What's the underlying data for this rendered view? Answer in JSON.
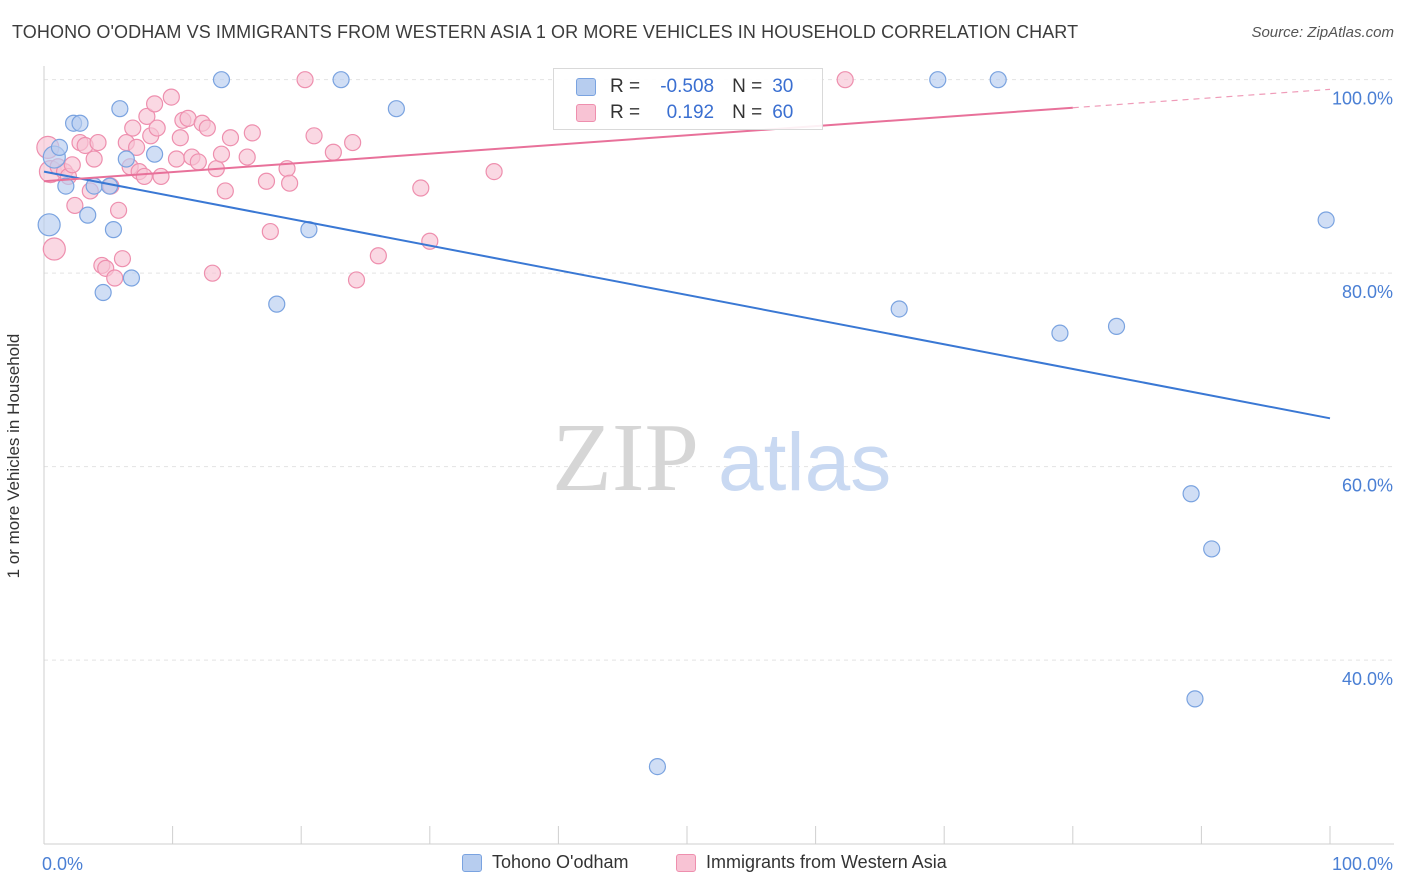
{
  "title": "TOHONO O'ODHAM VS IMMIGRANTS FROM WESTERN ASIA 1 OR MORE VEHICLES IN HOUSEHOLD CORRELATION CHART",
  "source": "Source: ZipAtlas.com",
  "watermark": {
    "zip": "ZIP",
    "atlas": "atlas"
  },
  "colors": {
    "blue_fill": "#b7cdef",
    "blue_stroke": "#7aa3e0",
    "blue_line": "#3a78d4",
    "pink_fill": "#f8c3d4",
    "pink_stroke": "#ee8fae",
    "pink_line": "#e8719a",
    "tick_text": "#4a7fd4",
    "grid": "#e3e3e3"
  },
  "legend": {
    "r_label": "R =",
    "n_label": "N =",
    "rows": [
      {
        "r": "-0.508",
        "n": "30"
      },
      {
        "r": "0.192",
        "n": "60"
      }
    ]
  },
  "chart_data": {
    "type": "scatter",
    "xlabel": "",
    "ylabel": "1 or more Vehicles in Household",
    "xlim": [
      0,
      100
    ],
    "ylim": [
      21,
      101
    ],
    "x_tick_labels": [
      "0.0%",
      "100.0%"
    ],
    "y_ticks": [
      40,
      60,
      80,
      100
    ],
    "y_tick_labels": [
      "40.0%",
      "60.0%",
      "80.0%",
      "100.0%"
    ],
    "grid": true,
    "legend_position": "top-center",
    "series": [
      {
        "name": "Tohono O'odham",
        "color": "#b7cdef",
        "trend": {
          "x": [
            0,
            100
          ],
          "y": [
            90.5,
            65.0
          ],
          "r": -0.508,
          "n": 30
        },
        "points": [
          {
            "x": 0.4,
            "y": 85.0
          },
          {
            "x": 0.8,
            "y": 92.0
          },
          {
            "x": 1.2,
            "y": 93.0
          },
          {
            "x": 1.7,
            "y": 89.0
          },
          {
            "x": 2.3,
            "y": 95.5
          },
          {
            "x": 2.8,
            "y": 95.5
          },
          {
            "x": 3.4,
            "y": 86.0
          },
          {
            "x": 3.9,
            "y": 89.0
          },
          {
            "x": 4.6,
            "y": 78.0
          },
          {
            "x": 5.1,
            "y": 89.0
          },
          {
            "x": 5.4,
            "y": 84.5
          },
          {
            "x": 5.9,
            "y": 97.0
          },
          {
            "x": 6.4,
            "y": 91.8
          },
          {
            "x": 6.8,
            "y": 79.5
          },
          {
            "x": 8.6,
            "y": 92.3
          },
          {
            "x": 13.8,
            "y": 100.0
          },
          {
            "x": 18.1,
            "y": 76.8
          },
          {
            "x": 20.6,
            "y": 84.5
          },
          {
            "x": 23.1,
            "y": 100.0
          },
          {
            "x": 27.4,
            "y": 97.0
          },
          {
            "x": 47.7,
            "y": 29.0
          },
          {
            "x": 66.5,
            "y": 76.3
          },
          {
            "x": 69.5,
            "y": 100.0
          },
          {
            "x": 74.2,
            "y": 100.0
          },
          {
            "x": 79.0,
            "y": 73.8
          },
          {
            "x": 83.4,
            "y": 74.5
          },
          {
            "x": 89.2,
            "y": 57.2
          },
          {
            "x": 89.5,
            "y": 36.0
          },
          {
            "x": 90.8,
            "y": 51.5
          },
          {
            "x": 99.7,
            "y": 85.5
          }
        ]
      },
      {
        "name": "Immigrants from Western Asia",
        "color": "#f8c3d4",
        "trend": {
          "x": [
            0,
            100
          ],
          "y": [
            89.5,
            99.0
          ],
          "r": 0.192,
          "n": 60
        },
        "trend_solid_to_x": 80,
        "points": [
          {
            "x": 0.3,
            "y": 93.0
          },
          {
            "x": 0.5,
            "y": 90.5
          },
          {
            "x": 0.8,
            "y": 82.5
          },
          {
            "x": 1.1,
            "y": 91.0
          },
          {
            "x": 1.6,
            "y": 90.5
          },
          {
            "x": 1.9,
            "y": 90.0
          },
          {
            "x": 2.2,
            "y": 91.2
          },
          {
            "x": 2.4,
            "y": 87.0
          },
          {
            "x": 2.8,
            "y": 93.5
          },
          {
            "x": 3.2,
            "y": 93.2
          },
          {
            "x": 3.6,
            "y": 88.5
          },
          {
            "x": 3.9,
            "y": 91.8
          },
          {
            "x": 4.2,
            "y": 93.5
          },
          {
            "x": 4.5,
            "y": 80.8
          },
          {
            "x": 4.8,
            "y": 80.5
          },
          {
            "x": 5.2,
            "y": 89.0
          },
          {
            "x": 5.5,
            "y": 79.5
          },
          {
            "x": 5.8,
            "y": 86.5
          },
          {
            "x": 6.1,
            "y": 81.5
          },
          {
            "x": 6.4,
            "y": 93.5
          },
          {
            "x": 6.7,
            "y": 91.0
          },
          {
            "x": 6.9,
            "y": 95.0
          },
          {
            "x": 7.2,
            "y": 93.0
          },
          {
            "x": 7.4,
            "y": 90.5
          },
          {
            "x": 7.8,
            "y": 90.0
          },
          {
            "x": 8.0,
            "y": 96.2
          },
          {
            "x": 8.3,
            "y": 94.2
          },
          {
            "x": 8.6,
            "y": 97.5
          },
          {
            "x": 8.8,
            "y": 95.0
          },
          {
            "x": 9.1,
            "y": 90.0
          },
          {
            "x": 9.9,
            "y": 98.2
          },
          {
            "x": 10.3,
            "y": 91.8
          },
          {
            "x": 10.6,
            "y": 94.0
          },
          {
            "x": 10.8,
            "y": 95.8
          },
          {
            "x": 11.2,
            "y": 96.0
          },
          {
            "x": 11.5,
            "y": 92.0
          },
          {
            "x": 12.0,
            "y": 91.5
          },
          {
            "x": 12.3,
            "y": 95.5
          },
          {
            "x": 12.7,
            "y": 95.0
          },
          {
            "x": 13.1,
            "y": 80.0
          },
          {
            "x": 13.4,
            "y": 90.8
          },
          {
            "x": 13.8,
            "y": 92.3
          },
          {
            "x": 14.1,
            "y": 88.5
          },
          {
            "x": 14.5,
            "y": 94.0
          },
          {
            "x": 15.8,
            "y": 92.0
          },
          {
            "x": 16.2,
            "y": 94.5
          },
          {
            "x": 17.3,
            "y": 89.5
          },
          {
            "x": 17.6,
            "y": 84.3
          },
          {
            "x": 18.9,
            "y": 90.8
          },
          {
            "x": 19.1,
            "y": 89.3
          },
          {
            "x": 21.0,
            "y": 94.2
          },
          {
            "x": 24.0,
            "y": 93.5
          },
          {
            "x": 24.3,
            "y": 79.3
          },
          {
            "x": 20.3,
            "y": 100.0
          },
          {
            "x": 26.0,
            "y": 81.8
          },
          {
            "x": 29.3,
            "y": 88.8
          },
          {
            "x": 30.0,
            "y": 83.3
          },
          {
            "x": 35.0,
            "y": 90.5
          },
          {
            "x": 62.3,
            "y": 100.0
          },
          {
            "x": 22.5,
            "y": 92.5
          }
        ]
      }
    ]
  }
}
